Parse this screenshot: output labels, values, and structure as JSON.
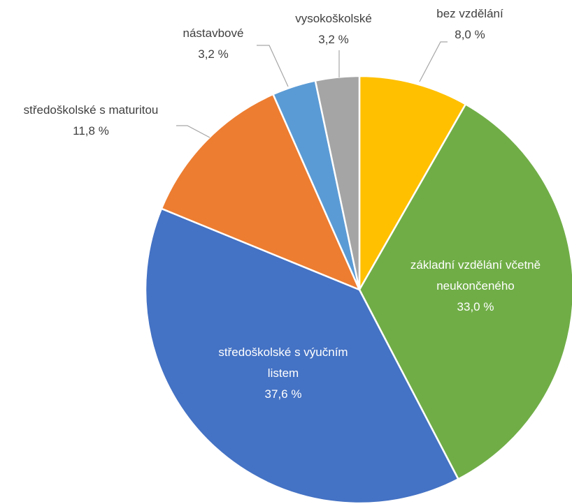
{
  "chart_data": {
    "type": "pie",
    "categories": [
      "bez vzdělání",
      "základní vzdělání včetně neukončeného",
      "středoškolské s výučním listem",
      "středoškolské s maturitou",
      "nástavbové",
      "vysokoškolské"
    ],
    "values": [
      8.0,
      33.0,
      37.6,
      11.8,
      3.2,
      3.2
    ],
    "value_labels": [
      "8,0 %",
      "33,0 %",
      "37,6 %",
      "11,8 %",
      "3,2 %",
      "3,2 %"
    ],
    "colors": [
      "#FFC000",
      "#70AD47",
      "#4472C4",
      "#ED7D31",
      "#5B9BD5",
      "#A5A5A5"
    ]
  }
}
